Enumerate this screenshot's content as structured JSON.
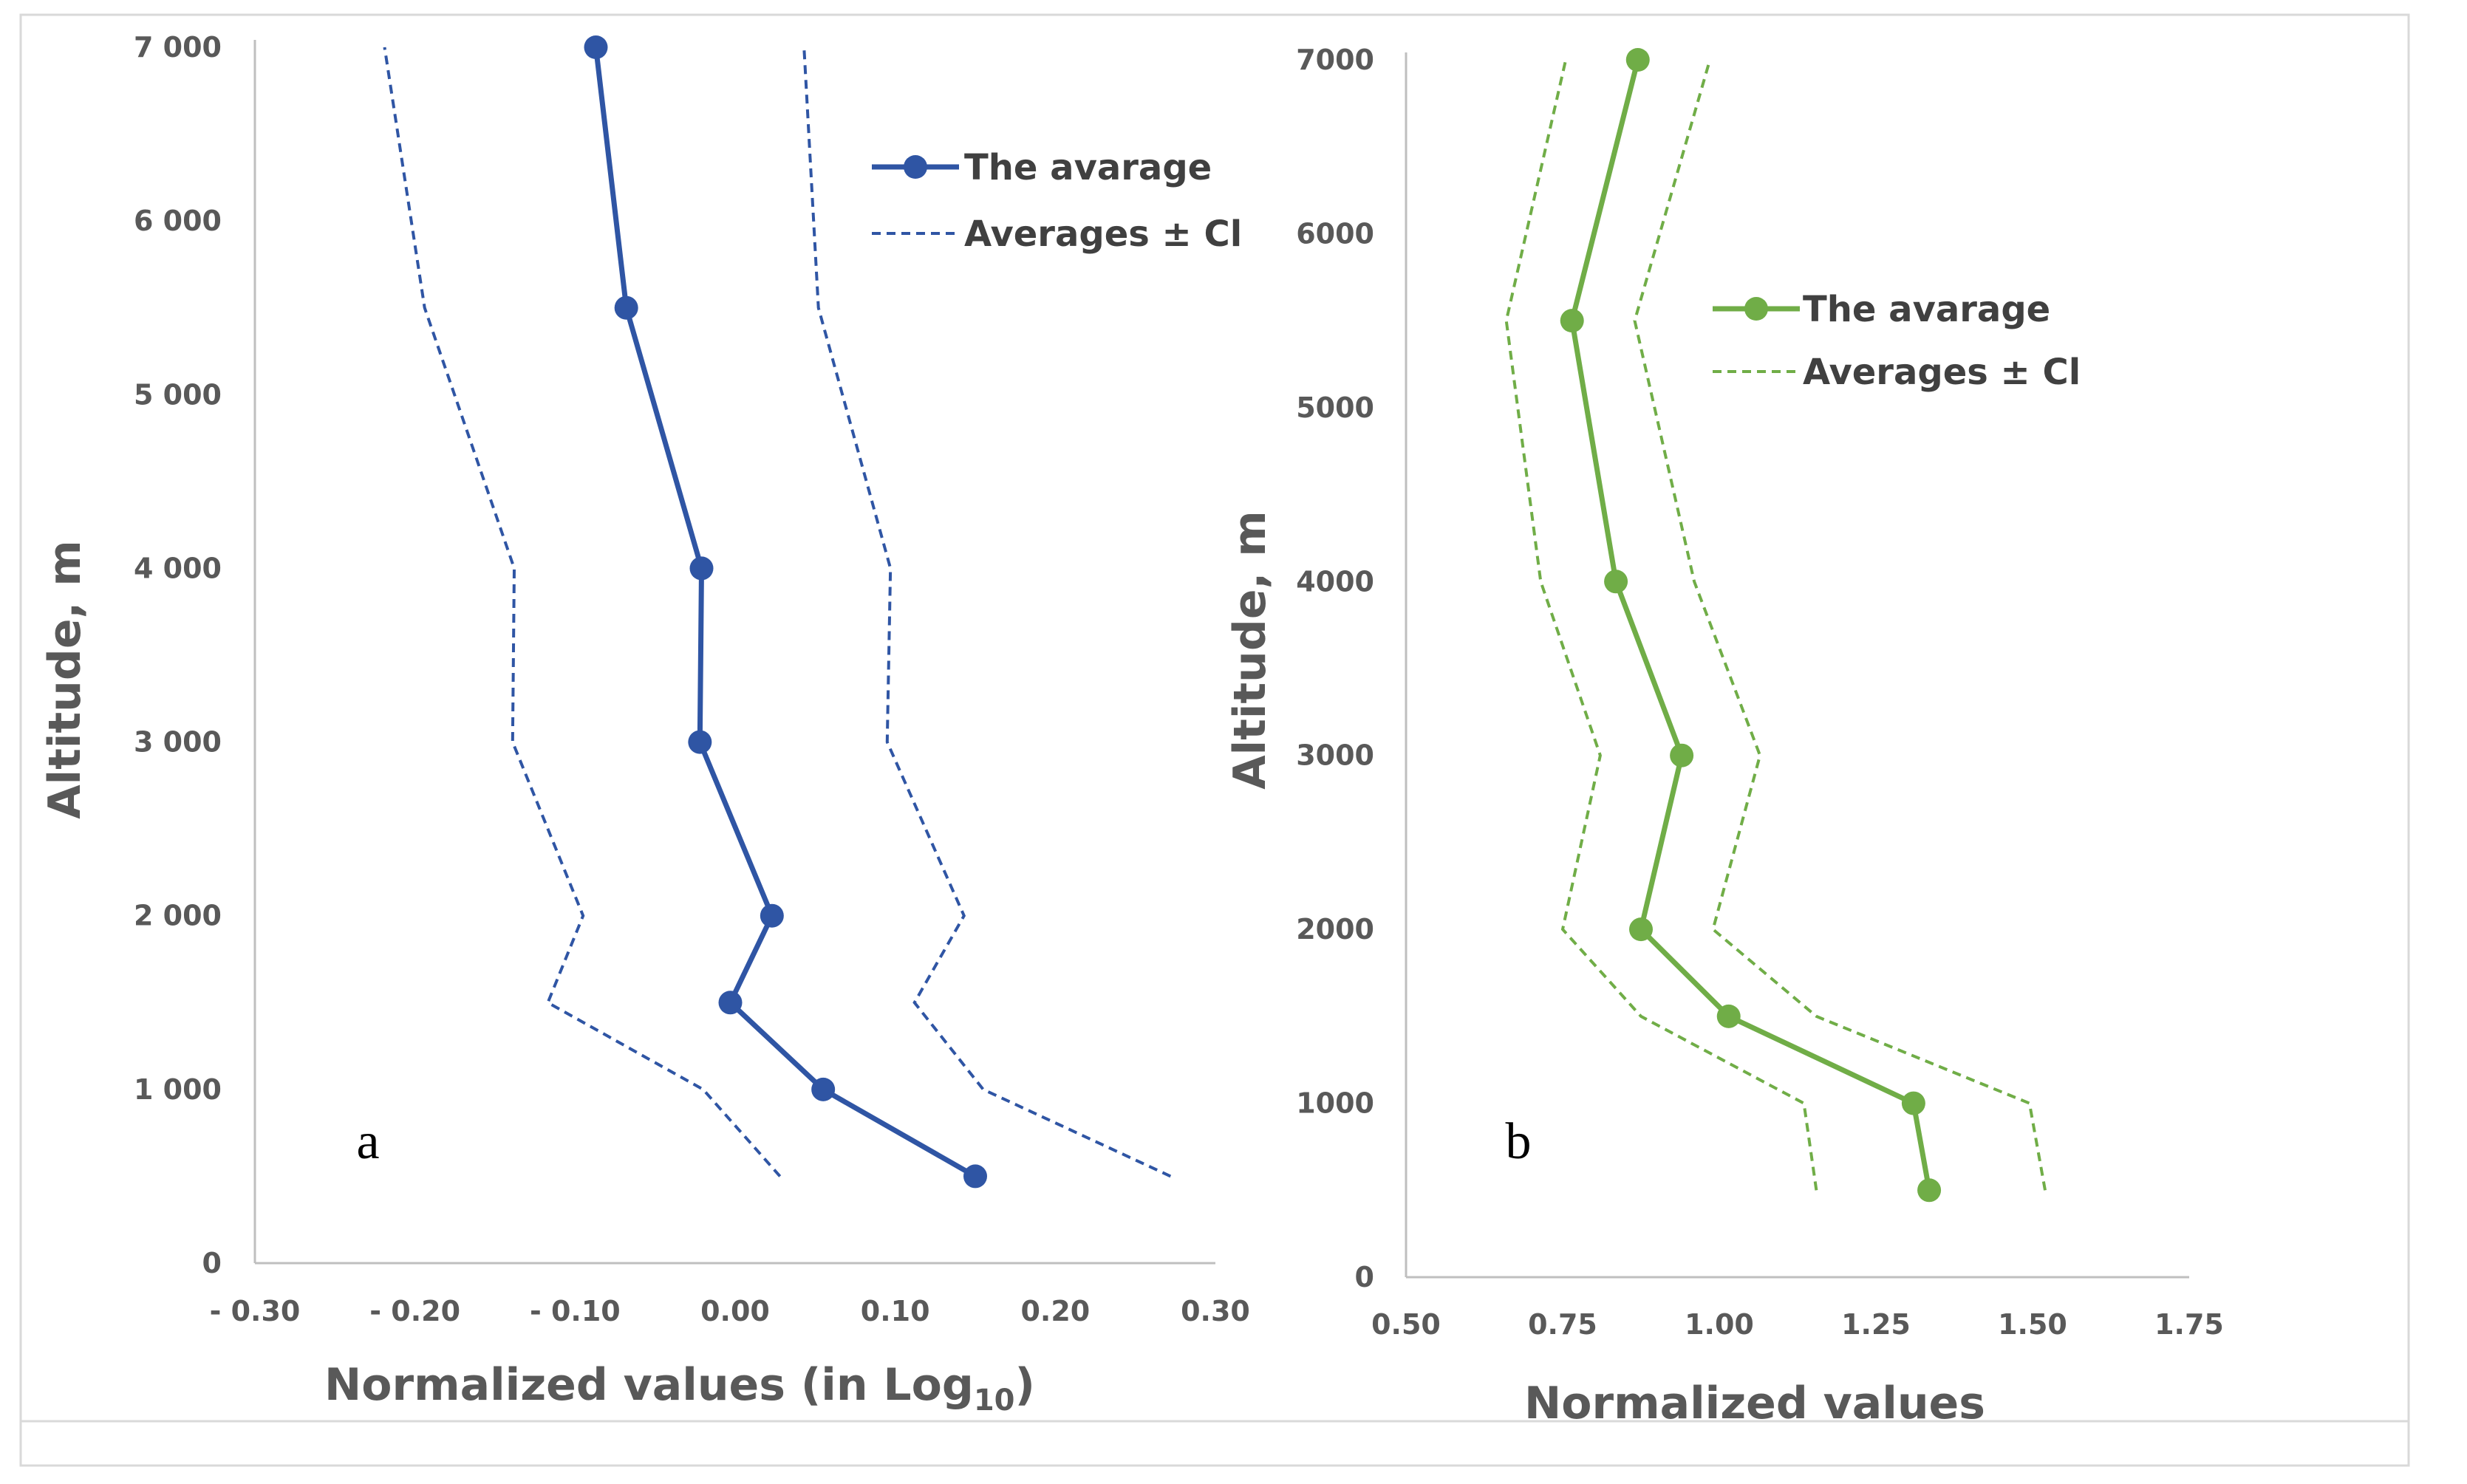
{
  "chart_data": [
    {
      "type": "line",
      "panel_label": "a",
      "xlabel": "Normalized values (in Log",
      "xlabel_subscript": "10",
      "xlabel_suffix": ")",
      "ylabel": "Altitude, m",
      "xlim": [
        -0.3,
        0.3
      ],
      "ylim": [
        0,
        7000
      ],
      "xticks": [
        -0.3,
        -0.2,
        -0.1,
        0.0,
        0.1,
        0.2,
        0.3
      ],
      "xtick_labels": [
        "- 0.30",
        "- 0.20",
        "- 0.10",
        "0.00",
        "0.10",
        "0.20",
        "0.30"
      ],
      "yticks": [
        0,
        1000,
        2000,
        3000,
        4000,
        5000,
        6000,
        7000
      ],
      "ytick_labels": [
        "0",
        "1 000",
        "2 000",
        "3 000",
        "4 000",
        "5 000",
        "6 000",
        "7 000"
      ],
      "legend_position": "top-right",
      "color": "#2f55a4",
      "series": [
        {
          "name": "The avarage",
          "style": "solid-markers",
          "points": [
            [
              0.15,
              500
            ],
            [
              0.055,
              1000
            ],
            [
              -0.003,
              1500
            ],
            [
              0.023,
              2000
            ],
            [
              -0.022,
              3000
            ],
            [
              -0.021,
              4000
            ],
            [
              -0.068,
              5500
            ],
            [
              -0.087,
              7000
            ]
          ]
        },
        {
          "name": "Averages ± Cl",
          "style": "dashed",
          "points": [
            [
              0.028,
              500
            ],
            [
              -0.02,
              1000
            ],
            [
              -0.117,
              1500
            ],
            [
              -0.095,
              2000
            ],
            [
              -0.139,
              3000
            ],
            [
              -0.138,
              4000
            ],
            [
              -0.194,
              5500
            ],
            [
              -0.219,
              7000
            ]
          ]
        },
        {
          "name": "",
          "style": "dashed",
          "points": [
            [
              0.272,
              500
            ],
            [
              0.155,
              1000
            ],
            [
              0.112,
              1500
            ],
            [
              0.143,
              2000
            ],
            [
              0.095,
              3000
            ],
            [
              0.097,
              4000
            ],
            [
              0.052,
              5500
            ],
            [
              0.043,
              7000
            ]
          ]
        }
      ]
    },
    {
      "type": "line",
      "panel_label": "b",
      "xlabel": "Normalized values",
      "ylabel": "Altitude, m",
      "xlim": [
        0.5,
        1.75
      ],
      "ylim": [
        0,
        7000
      ],
      "xticks": [
        0.5,
        0.75,
        1.0,
        1.25,
        1.5,
        1.75
      ],
      "xtick_labels": [
        "0.50",
        "0.75",
        "1.00",
        "1.25",
        "1.50",
        "1.75"
      ],
      "yticks": [
        0,
        1000,
        2000,
        3000,
        4000,
        5000,
        6000,
        7000
      ],
      "ytick_labels": [
        "0",
        "1000",
        "2000",
        "3000",
        "4000",
        "5000",
        "6000",
        "7000"
      ],
      "legend_position": "upper-right",
      "color": "#70ad47",
      "series": [
        {
          "name": "The avarage",
          "style": "solid-markers",
          "points": [
            [
              1.335,
              500
            ],
            [
              1.31,
              1000
            ],
            [
              1.015,
              1500
            ],
            [
              0.875,
              2000
            ],
            [
              0.94,
              3000
            ],
            [
              0.835,
              4000
            ],
            [
              0.765,
              5500
            ],
            [
              0.87,
              7000
            ]
          ]
        },
        {
          "name": "Averages ± Cl",
          "style": "dashed",
          "points": [
            [
              1.155,
              500
            ],
            [
              1.135,
              1000
            ],
            [
              0.875,
              1500
            ],
            [
              0.75,
              2000
            ],
            [
              0.81,
              3000
            ],
            [
              0.715,
              4000
            ],
            [
              0.66,
              5500
            ],
            [
              0.755,
              7000
            ]
          ]
        },
        {
          "name": "",
          "style": "dashed",
          "points": [
            [
              1.52,
              500
            ],
            [
              1.495,
              1000
            ],
            [
              1.155,
              1500
            ],
            [
              0.99,
              2000
            ],
            [
              1.065,
              3000
            ],
            [
              0.96,
              4000
            ],
            [
              0.865,
              5500
            ],
            [
              0.985,
              7000
            ]
          ]
        }
      ]
    }
  ]
}
